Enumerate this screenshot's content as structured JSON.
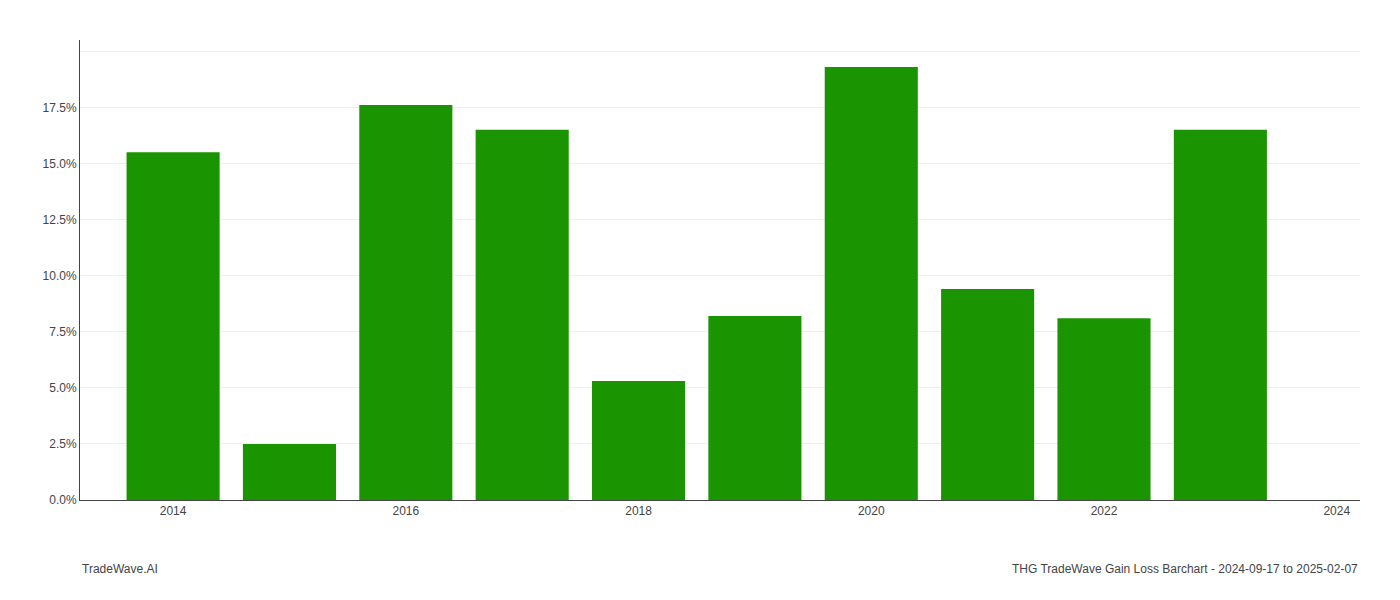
{
  "chart_data": {
    "type": "bar",
    "x": [
      2014,
      2015,
      2016,
      2017,
      2018,
      2019,
      2020,
      2021,
      2022,
      2023
    ],
    "values": [
      0.155,
      0.025,
      0.176,
      0.165,
      0.053,
      0.082,
      0.193,
      0.094,
      0.081,
      0.165
    ],
    "color": "#1a9400",
    "xlim": [
      2013.2,
      2024.2
    ],
    "xticks": [
      2014,
      2016,
      2018,
      2020,
      2022,
      2024
    ],
    "ylim": [
      0.0,
      0.205
    ],
    "yticks": [
      {
        "value": 0.0,
        "label": "0.0%"
      },
      {
        "value": 0.025,
        "label": "2.5%"
      },
      {
        "value": 0.05,
        "label": "5.0%"
      },
      {
        "value": 0.075,
        "label": "7.5%"
      },
      {
        "value": 0.1,
        "label": "10.0%"
      },
      {
        "value": 0.125,
        "label": "12.5%"
      },
      {
        "value": 0.15,
        "label": "15.0%"
      },
      {
        "value": 0.175,
        "label": "17.5%"
      },
      {
        "value": 0.2,
        "label": ""
      }
    ],
    "grid": true,
    "annotations": [
      "TradeWave.AI",
      "THG TradeWave Gain Loss Barchart - 2024-09-17 to 2025-02-07"
    ]
  }
}
